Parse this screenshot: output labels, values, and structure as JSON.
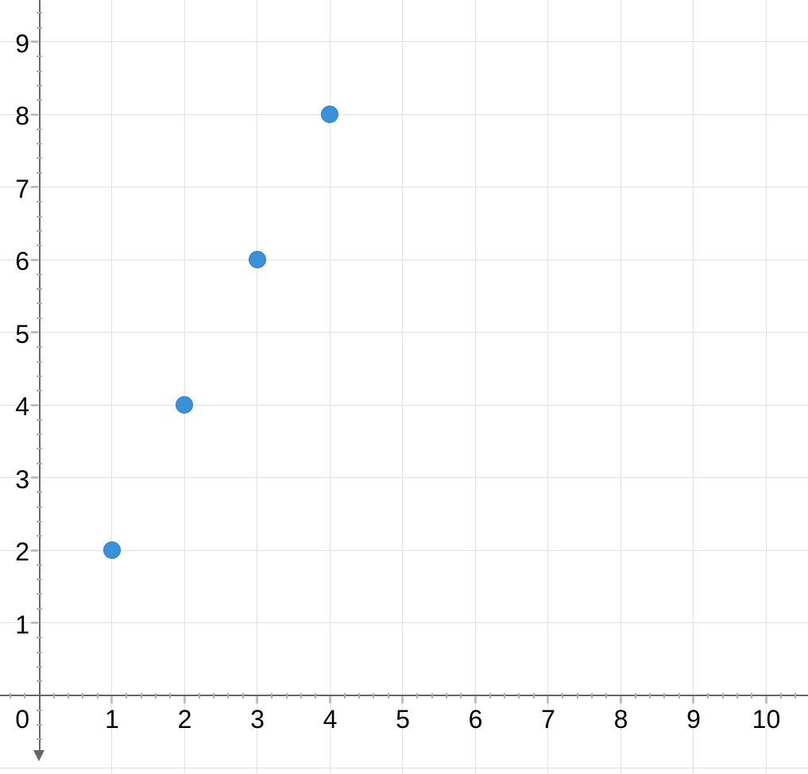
{
  "chart_data": {
    "type": "scatter",
    "title": "",
    "points": [
      {
        "x": 1,
        "y": 2
      },
      {
        "x": 2,
        "y": 4
      },
      {
        "x": 3,
        "y": 6
      },
      {
        "x": 4,
        "y": 8
      }
    ],
    "x_ticks": [
      1,
      2,
      3,
      4,
      5,
      6,
      7,
      8,
      9,
      10
    ],
    "y_ticks": [
      1,
      2,
      3,
      4,
      5,
      6,
      7,
      8,
      9
    ],
    "origin_label": "0",
    "xlim": [
      -0.541,
      10.574
    ],
    "ylim": [
      -1.077,
      9.579
    ],
    "minor_tick_step": 0.2,
    "grid": "on",
    "legend": "none",
    "y_axis_arrow": "down",
    "colors": {
      "background": "#FFFFFF",
      "point": "#3A91DB",
      "point_border": "#2E7BBE",
      "axis": "#666666",
      "grid": "#E2E2E2",
      "major_tick": "#C0C0C0",
      "minor_tick": "#B0B0B0",
      "label": "#000000"
    }
  }
}
